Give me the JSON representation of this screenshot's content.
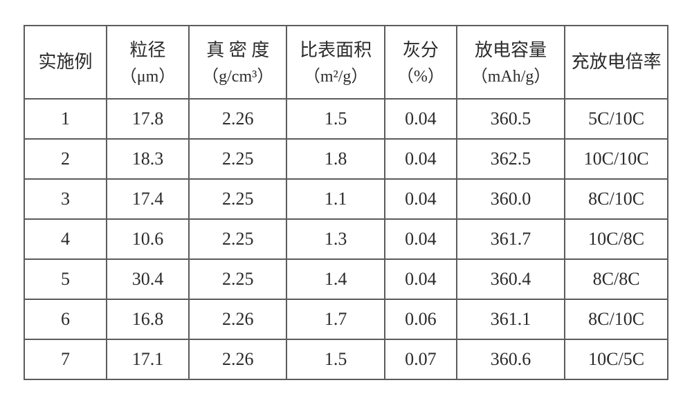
{
  "table": {
    "columns": [
      {
        "main": "实施例",
        "unit": ""
      },
      {
        "main": "粒径",
        "unit": "（μm）"
      },
      {
        "main": "真 密 度",
        "unit": "（g/cm³）"
      },
      {
        "main": "比表面积",
        "unit": "（m²/g）"
      },
      {
        "main": "灰分",
        "unit": "（%）"
      },
      {
        "main": "放电容量",
        "unit": "（mAh/g）"
      },
      {
        "main": "充放电倍率",
        "unit": ""
      }
    ],
    "col_widths_pct": [
      12.8,
      12.8,
      15.2,
      15.2,
      11.2,
      16.8,
      16.0
    ],
    "rows": [
      [
        "1",
        "17.8",
        "2.26",
        "1.5",
        "0.04",
        "360.5",
        "5C/10C"
      ],
      [
        "2",
        "18.3",
        "2.25",
        "1.8",
        "0.04",
        "362.5",
        "10C/10C"
      ],
      [
        "3",
        "17.4",
        "2.25",
        "1.1",
        "0.04",
        "360.0",
        "8C/10C"
      ],
      [
        "4",
        "10.6",
        "2.25",
        "1.3",
        "0.04",
        "361.7",
        "10C/8C"
      ],
      [
        "5",
        "30.4",
        "2.25",
        "1.4",
        "0.04",
        "360.4",
        "8C/8C"
      ],
      [
        "6",
        "16.8",
        "2.26",
        "1.7",
        "0.06",
        "361.1",
        "8C/10C"
      ],
      [
        "7",
        "17.1",
        "2.26",
        "1.5",
        "0.07",
        "360.6",
        "10C/5C"
      ]
    ],
    "border_color": "#5b5b5b",
    "text_color": "#2b2b2b",
    "background_color": "#ffffff",
    "header_fontsize_pt": 20,
    "body_fontsize_pt": 20
  }
}
